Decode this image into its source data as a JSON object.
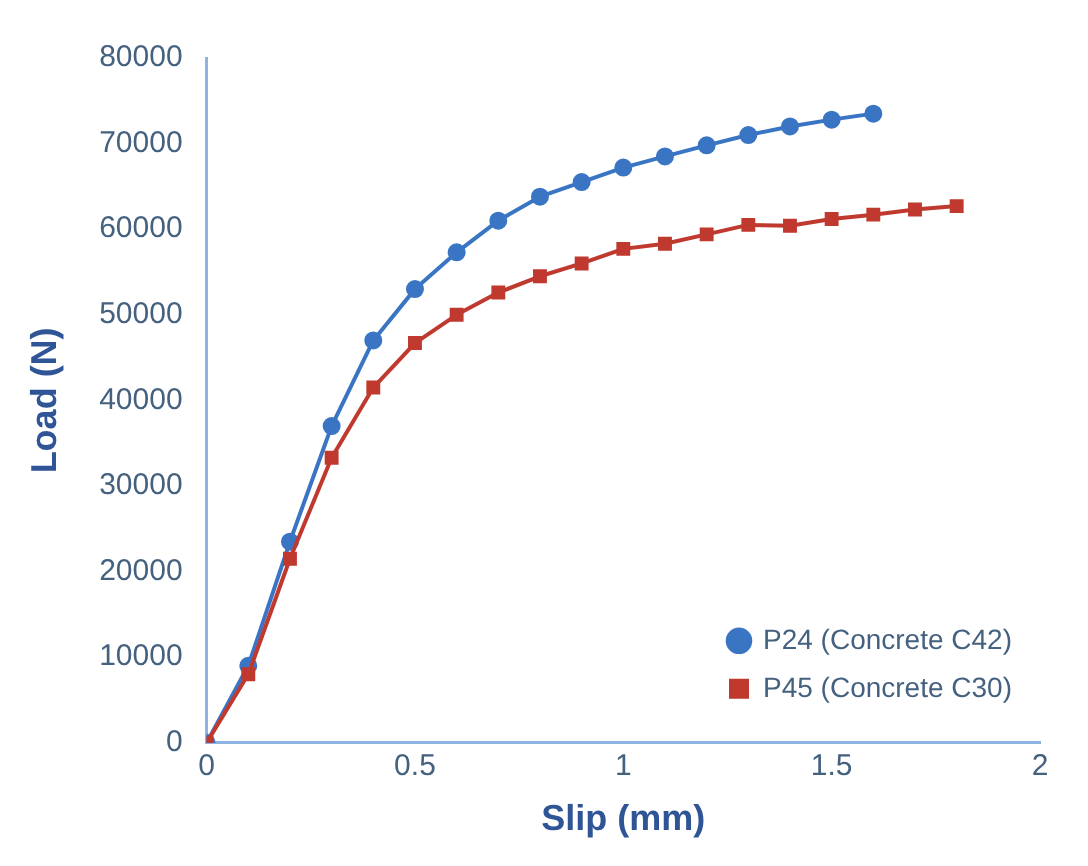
{
  "chart_data": {
    "type": "line",
    "xlabel": "Slip (mm)",
    "ylabel": "Load (N)",
    "xlim": [
      0,
      2
    ],
    "xticks": [
      0,
      0.5,
      1,
      1.5,
      2
    ],
    "ylim": [
      0,
      80000
    ],
    "yticks": [
      0,
      10000,
      20000,
      30000,
      40000,
      50000,
      60000,
      70000,
      80000
    ],
    "grid": false,
    "legend": "bottom right",
    "series": [
      {
        "name": "P24 (Concrete C42)",
        "color": "#3a75c4",
        "marker": "circle",
        "x": [
          0,
          0.1,
          0.2,
          0.3,
          0.4,
          0.5,
          0.6,
          0.7,
          0.8,
          0.9,
          1.0,
          1.1,
          1.2,
          1.3,
          1.4,
          1.5,
          1.6
        ],
        "values": [
          0,
          9000,
          23500,
          37000,
          47000,
          53000,
          57300,
          61000,
          63800,
          65500,
          67200,
          68500,
          69800,
          71000,
          72000,
          72800,
          73500
        ]
      },
      {
        "name": "P45 (Concrete C30)",
        "color": "#c0392f",
        "marker": "square",
        "x": [
          0,
          0.1,
          0.2,
          0.3,
          0.4,
          0.5,
          0.6,
          0.7,
          0.8,
          0.9,
          1.0,
          1.1,
          1.2,
          1.3,
          1.4,
          1.5,
          1.6,
          1.7,
          1.8
        ],
        "values": [
          0,
          8000,
          21500,
          33300,
          41500,
          46700,
          50000,
          52600,
          54500,
          56000,
          57700,
          58300,
          59400,
          60500,
          60400,
          61200,
          61700,
          62300,
          62700
        ]
      }
    ]
  }
}
